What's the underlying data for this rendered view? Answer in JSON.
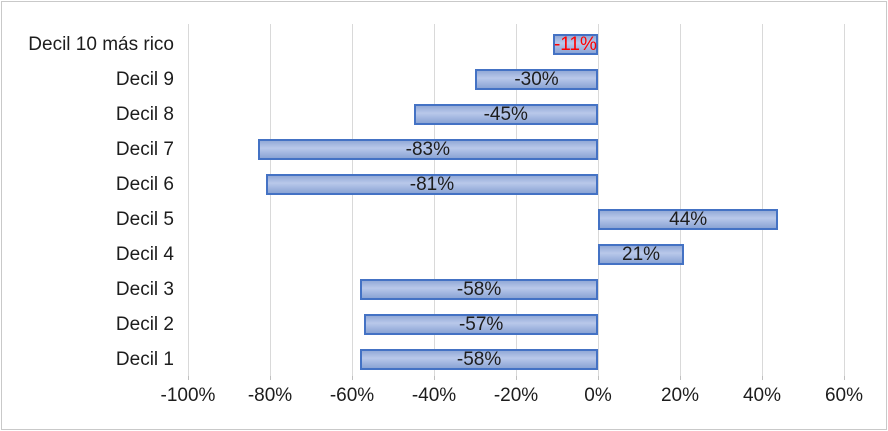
{
  "chart_data": {
    "type": "bar",
    "orientation": "horizontal",
    "title": "",
    "xlabel": "",
    "ylabel": "",
    "legend": "none",
    "grid": true,
    "categories": [
      "Decil 10 más rico",
      "Decil 9",
      "Decil 8",
      "Decil 7",
      "Decil 6",
      "Decil 5",
      "Decil 4",
      "Decil 3",
      "Decil 2",
      "Decil 1"
    ],
    "values": [
      -11,
      -30,
      -45,
      -83,
      -81,
      44,
      21,
      -58,
      -57,
      -58
    ],
    "data_labels": [
      "-11%",
      "-30%",
      "-45%",
      "-83%",
      "-81%",
      "44%",
      "21%",
      "-58%",
      "-57%",
      "-58%"
    ],
    "data_label_colors": [
      "#ff0000",
      "#1d1d1d",
      "#1d1d1d",
      "#1d1d1d",
      "#1d1d1d",
      "#1d1d1d",
      "#1d1d1d",
      "#1d1d1d",
      "#1d1d1d",
      "#1d1d1d"
    ],
    "xlim": [
      -100,
      60
    ],
    "x_tick_labels": [
      "-100%",
      "-80%",
      "-60%",
      "-40%",
      "-20%",
      "0%",
      "20%",
      "40%",
      "60%"
    ],
    "x_tick_values": [
      -100,
      -80,
      -60,
      -40,
      -20,
      0,
      20,
      40,
      60
    ],
    "colors": {
      "bar_border": "#4472c4",
      "bar_fill_top": "#93aad7",
      "bar_fill_mid": "#b9c8ea",
      "bar_fill_bottom": "#8ba4d5",
      "gridline": "#d9d9d9",
      "negative_highlight_label": "#ff0000",
      "text": "#1d1d1d",
      "chart_border": "#c9c9c9"
    }
  }
}
